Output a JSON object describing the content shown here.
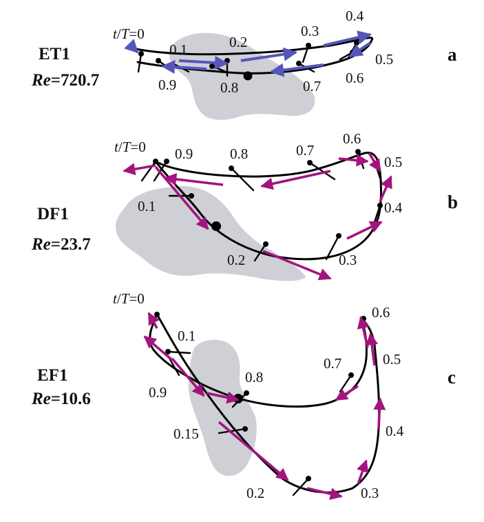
{
  "panels": [
    {
      "id": "a",
      "name": "ET1",
      "re_prefix": "Re",
      "re_value": "=720.7",
      "letter": "a",
      "header": {
        "t": "t",
        "slash": "/",
        "T": "T",
        "eq": "=0"
      },
      "arrow_color": "#5555bb",
      "labels": [
        "0.1",
        "0.2",
        "0.3",
        "0.4",
        "0.5",
        "0.6",
        "0.7",
        "0.8",
        "0.9"
      ]
    },
    {
      "id": "b",
      "name": "DF1",
      "re_prefix": "Re",
      "re_value": "=23.7",
      "letter": "b",
      "header": {
        "t": "t",
        "slash": "/",
        "T": "T",
        "eq": "=0"
      },
      "arrow_color": "#a3147f",
      "labels": [
        "0.9",
        "0.8",
        "0.7",
        "0.6",
        "0.5",
        "0.4",
        "0.3",
        "0.2",
        "0.1"
      ]
    },
    {
      "id": "c",
      "name": "EF1",
      "re_prefix": "Re",
      "re_value": "=10.6",
      "letter": "c",
      "header": {
        "t": "t",
        "slash": "/",
        "T": "T",
        "eq": "=0"
      },
      "arrow_color": "#a3147f",
      "labels": [
        "0.1",
        "0.6",
        "0.5",
        "0.7",
        "0.8",
        "0.9",
        "0.4",
        "0.15",
        "0.2",
        "0.3"
      ]
    }
  ]
}
